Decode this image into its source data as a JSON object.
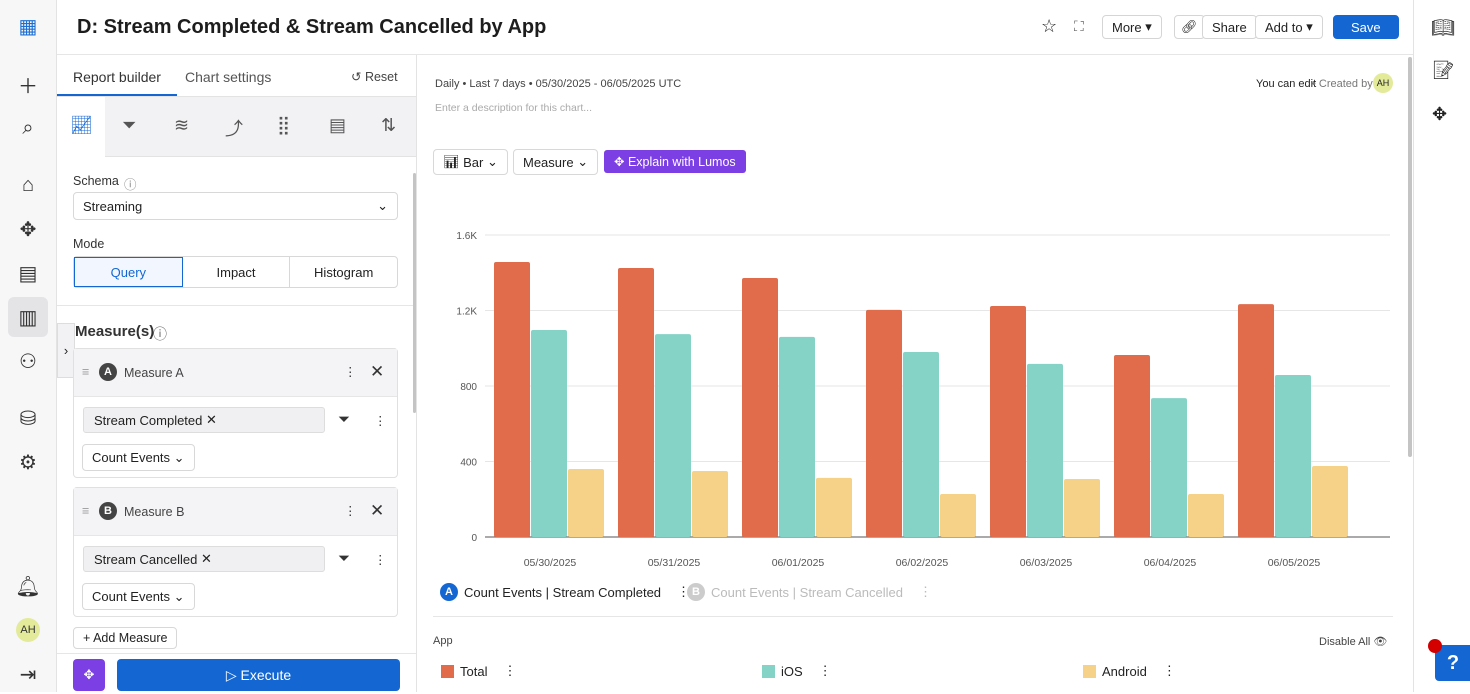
{
  "header": {
    "title": "D: Stream Completed & Stream Cancelled by App",
    "more": "More",
    "share": "Share",
    "add_to": "Add to",
    "save": "Save"
  },
  "panel": {
    "tab_builder": "Report builder",
    "tab_settings": "Chart settings",
    "reset": "Reset",
    "schema_label": "Schema",
    "schema_value": "Streaming",
    "mode_label": "Mode",
    "modes": [
      "Query",
      "Impact",
      "Histogram"
    ],
    "measures_title": "Measure(s)",
    "measure_a": {
      "letter": "A",
      "name": "Measure A",
      "event": "Stream Completed",
      "agg": "Count Events"
    },
    "measure_b": {
      "letter": "B",
      "name": "Measure B",
      "event": "Stream Cancelled",
      "agg": "Count Events"
    },
    "add_measure": "+ Add Measure",
    "execute": "Execute"
  },
  "nav": {
    "avatar": "AH"
  },
  "main": {
    "meta": "Daily • Last 7 days • 05/30/2025 - 06/05/2025 UTC",
    "can_edit": "You can edit",
    "created_by": " • Created by",
    "avatar": "AH",
    "description_placeholder": "Enter a description for this chart...",
    "chart_type": "Bar",
    "measure_dd": "Measure",
    "explain": "Explain with Lumos",
    "series_a": "Count Events | Stream Completed",
    "series_b": "Count Events | Stream Cancelled",
    "group_label": "App",
    "disable_all": "Disable All"
  },
  "chart_data": {
    "type": "bar",
    "categories": [
      "05/30/2025",
      "05/31/2025",
      "06/01/2025",
      "06/02/2025",
      "06/03/2025",
      "06/04/2025",
      "06/05/2025"
    ],
    "series": [
      {
        "name": "Total",
        "color": "#e06c4c",
        "values": [
          1457,
          1425,
          1372,
          1203,
          1224,
          964,
          1234
        ]
      },
      {
        "name": "iOS",
        "color": "#85d3c6",
        "values": [
          1097,
          1075,
          1060,
          980,
          917,
          736,
          858
        ]
      },
      {
        "name": "Android",
        "color": "#f5d287",
        "values": [
          360,
          350,
          313,
          228,
          307,
          228,
          376
        ]
      }
    ],
    "yticks": [
      "0",
      "400",
      "800",
      "1.2K",
      "1.6K"
    ],
    "ytick_values": [
      0,
      400,
      800,
      1200,
      1600
    ],
    "ylim": [
      0,
      1600
    ]
  }
}
